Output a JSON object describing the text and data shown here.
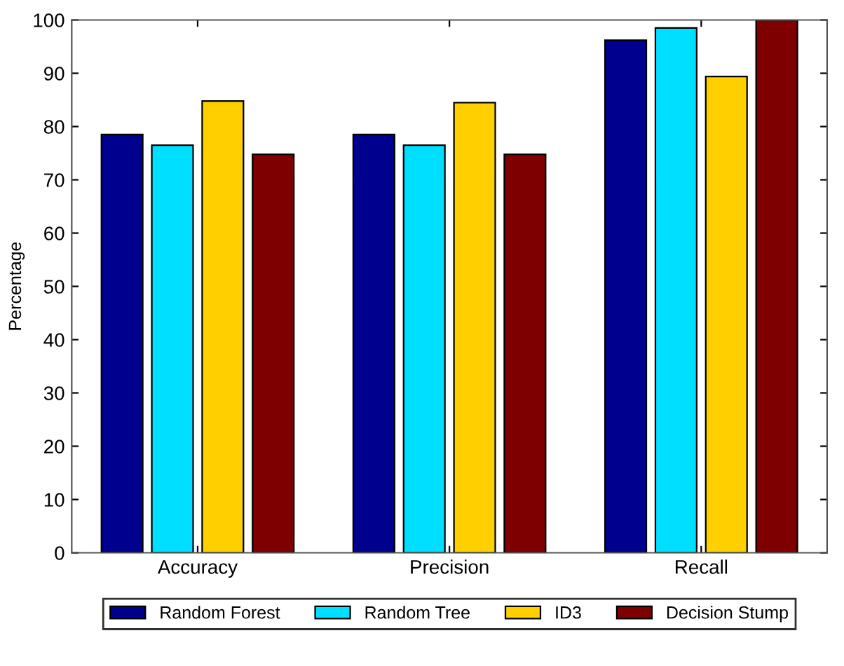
{
  "chart_data": {
    "type": "bar",
    "ylabel": "Percentage",
    "categories": [
      "Accuracy",
      "Precision",
      "Recall"
    ],
    "series": [
      {
        "name": "Random Forest",
        "color": "#00008f",
        "values": [
          78.5,
          78.5,
          96.2
        ]
      },
      {
        "name": "Random Tree",
        "color": "#00dfff",
        "values": [
          76.5,
          76.5,
          98.5
        ]
      },
      {
        "name": "ID3",
        "color": "#ffcf00",
        "values": [
          84.8,
          84.5,
          89.4
        ]
      },
      {
        "name": "Decision Stump",
        "color": "#7f0000",
        "values": [
          74.8,
          74.8,
          100
        ]
      }
    ],
    "ylim": [
      0,
      100
    ],
    "yticks": [
      0,
      10,
      20,
      30,
      40,
      50,
      60,
      70,
      80,
      90,
      100
    ],
    "grid": false,
    "legend": "bottom"
  }
}
